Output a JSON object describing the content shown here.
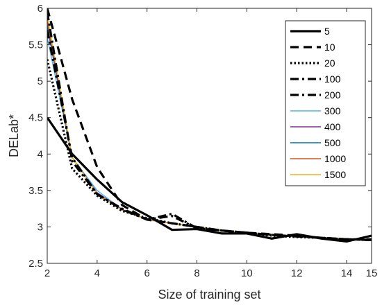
{
  "chart_data": {
    "type": "line",
    "title": "",
    "xlabel": "Size of training set",
    "ylabel": "DELab*",
    "xlim": [
      2,
      15
    ],
    "ylim": [
      2.5,
      6
    ],
    "xticks": [
      2,
      4,
      6,
      8,
      10,
      12,
      14,
      15
    ],
    "yticks": [
      2.5,
      3,
      3.5,
      4,
      4.5,
      5,
      5.5,
      6
    ],
    "ytick_labels": [
      "2.5",
      "3",
      "3.5",
      "4",
      "4.5",
      "5",
      "5.5",
      "6"
    ],
    "grid": false,
    "legend_position": "top-right",
    "x": [
      2,
      3,
      4,
      5,
      6,
      7,
      8,
      9,
      10,
      11,
      12,
      13,
      14,
      15
    ],
    "series": [
      {
        "name": "5",
        "color": "#000000",
        "style": "solid",
        "width": 3.2,
        "values": [
          4.5,
          4.0,
          3.65,
          3.34,
          3.16,
          2.96,
          2.97,
          2.91,
          2.91,
          2.84,
          2.9,
          2.84,
          2.8,
          2.88
        ]
      },
      {
        "name": "10",
        "color": "#000000",
        "style": "dashed",
        "width": 3.2,
        "values": [
          6.0,
          4.75,
          3.82,
          3.3,
          3.1,
          3.05,
          3.0,
          2.95,
          2.92,
          2.9,
          2.88,
          2.85,
          2.83,
          2.83
        ]
      },
      {
        "name": "20",
        "color": "#000000",
        "style": "dotted",
        "width": 3.2,
        "values": [
          5.3,
          3.8,
          3.43,
          3.22,
          3.12,
          3.05,
          3.0,
          2.95,
          2.92,
          2.88,
          2.86,
          2.85,
          2.83,
          2.82
        ]
      },
      {
        "name": "100",
        "color": "#000000",
        "style": "dashdot",
        "width": 3.2,
        "values": [
          5.7,
          3.95,
          3.45,
          3.25,
          3.1,
          3.15,
          2.98,
          2.95,
          2.92,
          2.89,
          2.87,
          2.85,
          2.83,
          2.82
        ]
      },
      {
        "name": "200",
        "color": "#000000",
        "style": "dashdot",
        "width": 3.2,
        "values": [
          5.95,
          3.9,
          3.45,
          3.24,
          3.1,
          3.18,
          2.98,
          2.95,
          2.92,
          2.89,
          2.87,
          2.85,
          2.83,
          2.82
        ]
      },
      {
        "name": "300",
        "color": "#4db3e6",
        "style": "solid",
        "width": 1.4,
        "values": [
          5.6,
          3.95,
          3.5,
          3.24,
          3.1,
          3.05,
          3.0,
          2.95,
          2.92,
          2.89,
          2.87,
          2.85,
          2.83,
          2.82
        ]
      },
      {
        "name": "400",
        "color": "#7e2f8e",
        "style": "solid",
        "width": 1.4,
        "values": [
          5.75,
          3.95,
          3.47,
          3.24,
          3.1,
          3.05,
          3.0,
          2.95,
          2.92,
          2.89,
          2.87,
          2.85,
          2.83,
          2.82
        ]
      },
      {
        "name": "500",
        "color": "#0072bd",
        "style": "solid",
        "width": 1.4,
        "values": [
          5.8,
          3.95,
          3.46,
          3.23,
          3.1,
          3.05,
          3.0,
          2.95,
          2.92,
          2.89,
          2.87,
          2.85,
          2.83,
          2.82
        ]
      },
      {
        "name": "1000",
        "color": "#d95319",
        "style": "solid",
        "width": 1.4,
        "values": [
          5.85,
          3.95,
          3.46,
          3.23,
          3.1,
          3.05,
          3.0,
          2.95,
          2.92,
          2.89,
          2.87,
          2.85,
          2.83,
          2.82
        ]
      },
      {
        "name": "1500",
        "color": "#edb120",
        "style": "solid",
        "width": 1.4,
        "values": [
          5.9,
          3.95,
          3.46,
          3.23,
          3.1,
          3.05,
          3.0,
          2.95,
          2.92,
          2.89,
          2.87,
          2.85,
          2.83,
          2.82
        ]
      }
    ]
  }
}
